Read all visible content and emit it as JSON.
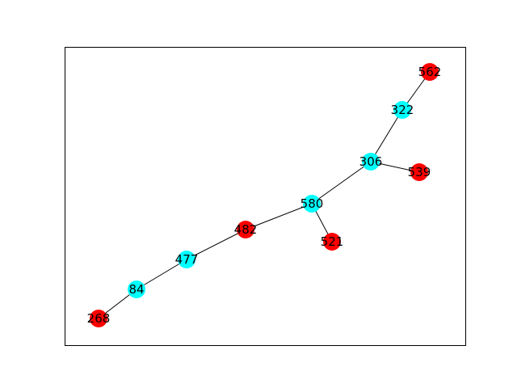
{
  "graph": {
    "colors": {
      "cyan": "#00ffff",
      "red": "#ff0000",
      "edge": "#000000",
      "frame": "#000000",
      "background": "#ffffff"
    },
    "nodes": [
      {
        "id": "562",
        "label": "562",
        "color": "red"
      },
      {
        "id": "322",
        "label": "322",
        "color": "cyan"
      },
      {
        "id": "306",
        "label": "306",
        "color": "cyan"
      },
      {
        "id": "539",
        "label": "539",
        "color": "red"
      },
      {
        "id": "580",
        "label": "580",
        "color": "cyan"
      },
      {
        "id": "521",
        "label": "521",
        "color": "red"
      },
      {
        "id": "482",
        "label": "482",
        "color": "red"
      },
      {
        "id": "477",
        "label": "477",
        "color": "cyan"
      },
      {
        "id": "84",
        "label": "84",
        "color": "cyan"
      },
      {
        "id": "268",
        "label": "268",
        "color": "red"
      }
    ],
    "edges": [
      [
        "562",
        "322"
      ],
      [
        "322",
        "306"
      ],
      [
        "306",
        "539"
      ],
      [
        "306",
        "580"
      ],
      [
        "580",
        "521"
      ],
      [
        "580",
        "482"
      ],
      [
        "482",
        "477"
      ],
      [
        "477",
        "84"
      ],
      [
        "84",
        "268"
      ]
    ]
  }
}
